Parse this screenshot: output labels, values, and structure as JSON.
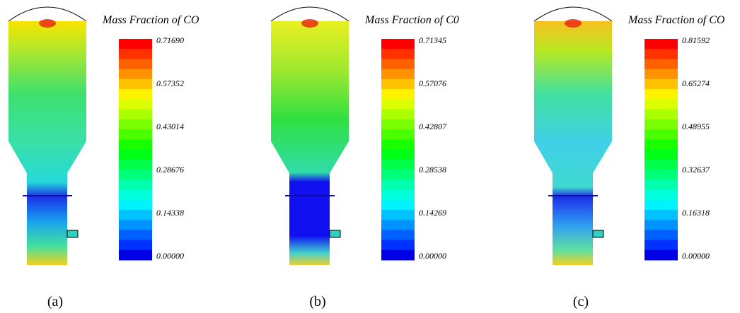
{
  "panels": [
    {
      "title": "Mass Fraction of CO",
      "ticks": [
        "0.71690",
        "0.57352",
        "0.43014",
        "0.28676",
        "0.14338",
        "0.00000"
      ],
      "label": "(a)"
    },
    {
      "title": "Mass Fraction of C0",
      "ticks": [
        "0.71345",
        "0.57076",
        "0.42807",
        "0.28538",
        "0.14269",
        "0.00000"
      ],
      "label": "(b)"
    },
    {
      "title": "Mass Fraction of CO",
      "ticks": [
        "0.81592",
        "0.65274",
        "0.48955",
        "0.32637",
        "0.16318",
        "0.00000"
      ],
      "label": "(c)"
    }
  ]
}
